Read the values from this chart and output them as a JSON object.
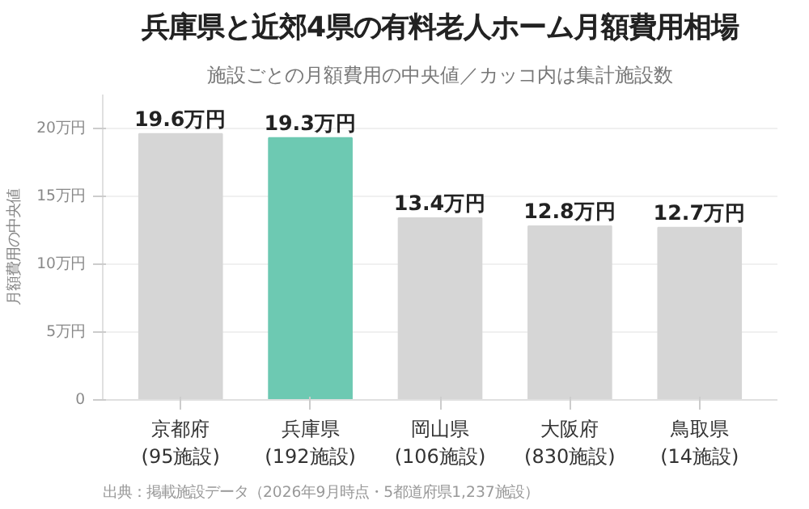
{
  "chart_data": {
    "type": "bar",
    "title": "兵庫県と近郊4県の有料老人ホーム月額費用相場",
    "subtitle": "施設ごとの月額費用の中央値／カッコ内は集計施設数",
    "ylabel": "月額費用の中央値",
    "categories": [
      "京都府\n(95施設)",
      "兵庫県\n(192施設)",
      "岡山県\n(106施設)",
      "大阪府\n(830施設)",
      "鳥取県\n(14施設)"
    ],
    "values": [
      19.6,
      19.3,
      13.4,
      12.8,
      12.7
    ],
    "colors": [
      "#d6d6d6",
      "#6dc9b2",
      "#d6d6d6",
      "#d6d6d6",
      "#d6d6d6"
    ],
    "value_labels": [
      "19.6万円",
      "19.3万円",
      "13.4万円",
      "12.8万円",
      "12.7万円"
    ],
    "ylim": [
      0,
      22.5
    ],
    "yticks": [
      {
        "value": 0,
        "label": "0"
      },
      {
        "value": 5,
        "label": "5万円"
      },
      {
        "value": 10,
        "label": "10万円"
      },
      {
        "value": 15,
        "label": "15万円"
      },
      {
        "value": 20,
        "label": "20万円"
      }
    ],
    "grid": "y",
    "annotations": [
      "出典：掲載施設データ（2026年9月時点・5都道府県1,237施設）"
    ]
  }
}
